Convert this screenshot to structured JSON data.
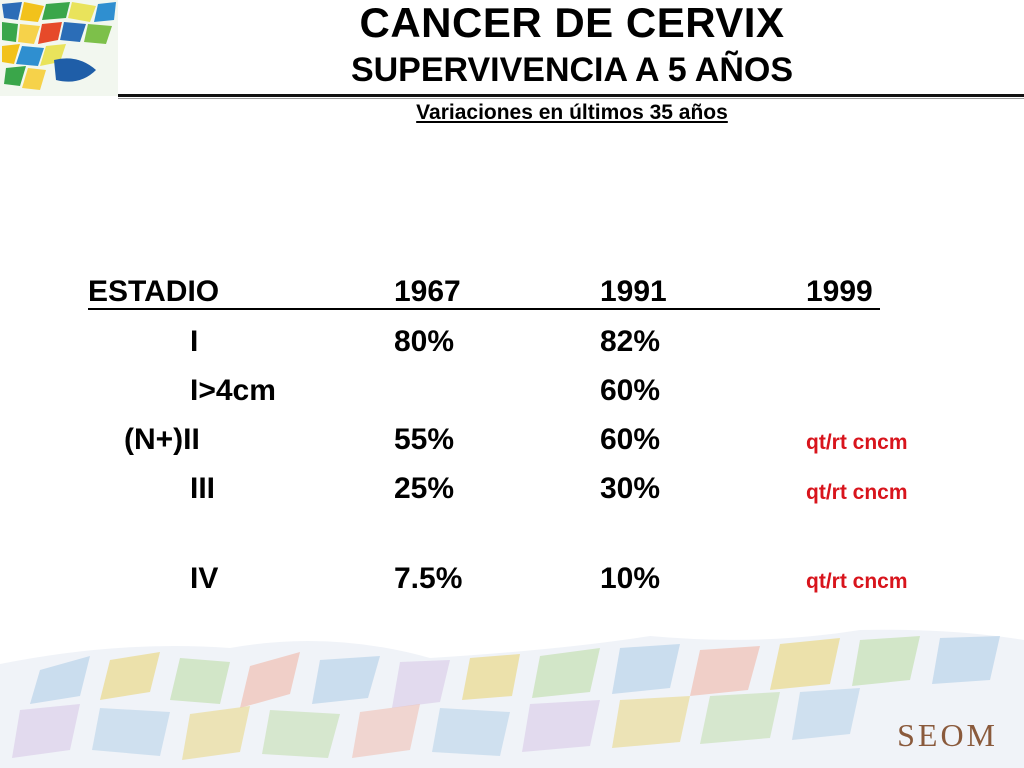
{
  "header": {
    "title": "CANCER DE CERVIX",
    "subtitle": "SUPERVIVENCIA A 5 AÑOS",
    "subheading": "Variaciones en últimos 35 años"
  },
  "table": {
    "columns": [
      "ESTADIO",
      "1967",
      "1991",
      "1999"
    ],
    "rows": [
      {
        "stage": "I",
        "y1967": "80%",
        "y1991": "82%",
        "note": ""
      },
      {
        "stage": "I>4cm",
        "y1967": "",
        "y1991": "60%",
        "note": ""
      },
      {
        "stage": "(N+)II",
        "y1967": "55%",
        "y1991": "60%",
        "note": "qt/rt cncm"
      },
      {
        "stage": "III",
        "y1967": "25%",
        "y1991": "30%",
        "note": "qt/rt cncm"
      },
      {
        "stage": "IV",
        "y1967": "7.5%",
        "y1991": "10%",
        "note": "qt/rt cncm"
      }
    ]
  },
  "footer": {
    "brand": "SEOM"
  },
  "colors": {
    "note": "#d8141c",
    "brand": "#8a5a3c"
  }
}
